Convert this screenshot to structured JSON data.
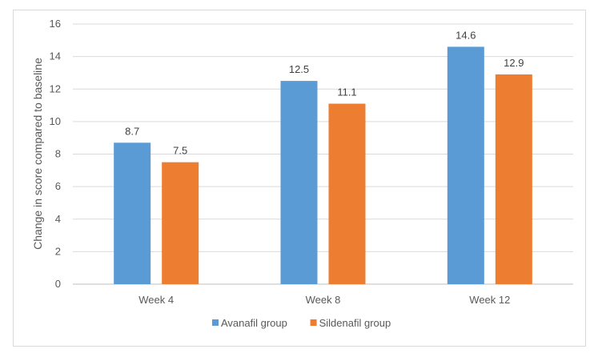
{
  "chart_data": {
    "type": "bar",
    "title": "",
    "xlabel": "",
    "ylabel": "Change in score compared to baseline",
    "categories": [
      "Week 4",
      "Week 8",
      "Week 12"
    ],
    "ylim": [
      0,
      16
    ],
    "yticks": [
      0,
      2,
      4,
      6,
      8,
      10,
      12,
      14,
      16
    ],
    "grid": true,
    "legend_position": "bottom",
    "series": [
      {
        "name": "Avanafil group",
        "color": "#5b9bd5",
        "values": [
          8.7,
          12.5,
          14.6
        ],
        "labels": [
          "8.7",
          "12.5",
          "14.6"
        ]
      },
      {
        "name": "Sildenafil group",
        "color": "#ed7d31",
        "values": [
          7.5,
          11.1,
          12.9
        ],
        "labels": [
          "7.5",
          "11.1",
          "12.9"
        ]
      }
    ]
  }
}
